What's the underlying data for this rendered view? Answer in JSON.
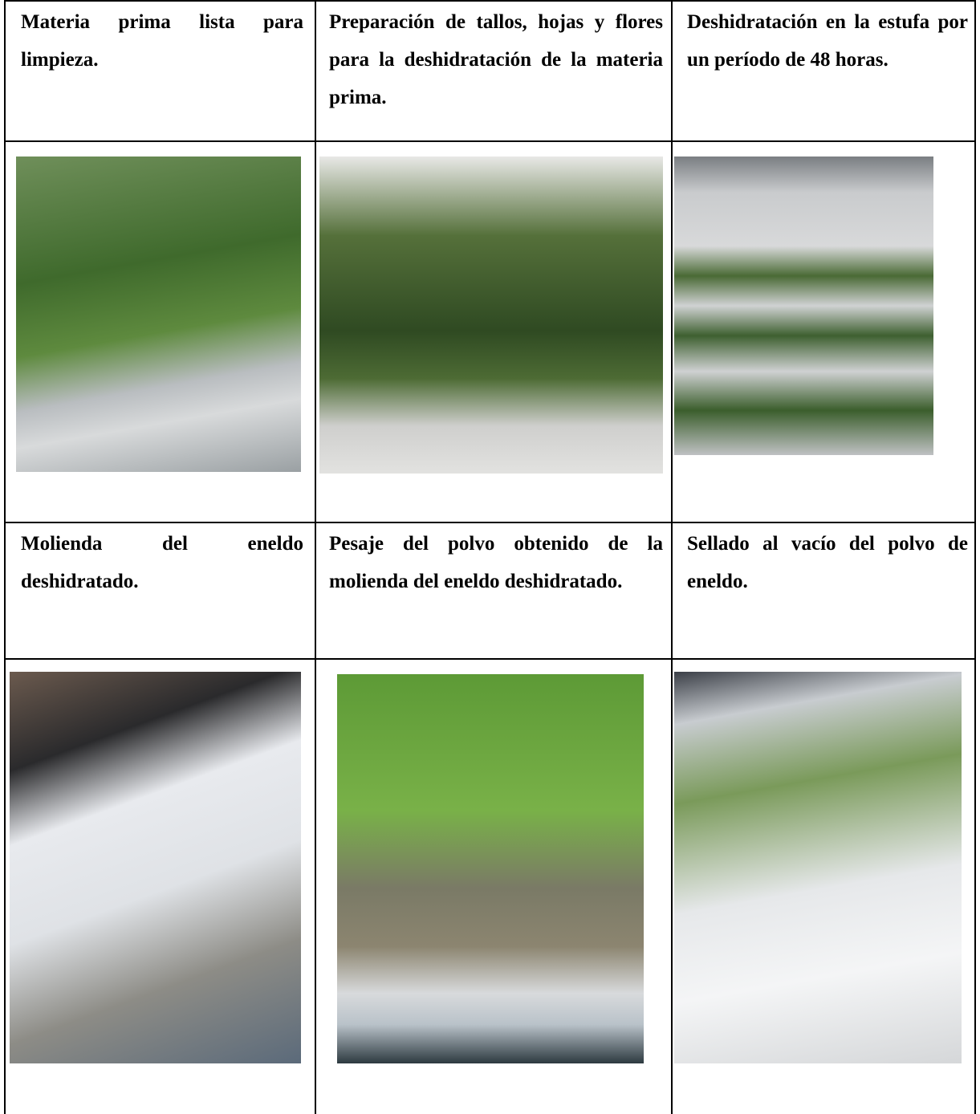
{
  "table": {
    "captions": [
      [
        "Materia prima lista para limpieza.",
        "Preparación de tallos, hojas y flores para la deshidratación de la materia prima.",
        "Deshidratación en la estufa por un período de 48 horas."
      ],
      [
        "Molienda del eneldo deshidratado.",
        "Pesaje del polvo obtenido de la molienda del eneldo deshidratado.",
        "Sellado al vacío del polvo de eneldo."
      ]
    ]
  }
}
